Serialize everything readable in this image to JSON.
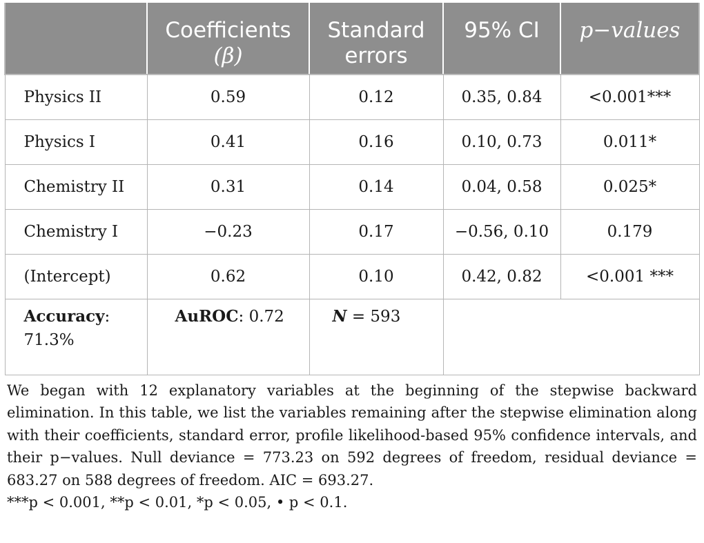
{
  "table": {
    "headers": [
      {
        "line1": "",
        "line2": ""
      },
      {
        "line1": "Coefficients",
        "line2": "(β)"
      },
      {
        "line1": "Standard",
        "line2": "errors"
      },
      {
        "line1": "95% CI",
        "line2": ""
      },
      {
        "line1": "p−values",
        "line2": ""
      }
    ],
    "rows": [
      {
        "label": "Physics II",
        "coef": "0.59",
        "se": "0.12",
        "ci": "0.35, 0.84",
        "p": "<0.001***"
      },
      {
        "label": "Physics I",
        "coef": "0.41",
        "se": "0.16",
        "ci": "0.10, 0.73",
        "p": "0.011*"
      },
      {
        "label": "Chemistry II",
        "coef": "0.31",
        "se": "0.14",
        "ci": "0.04, 0.58",
        "p": "0.025*"
      },
      {
        "label": "Chemistry I",
        "coef": "−0.23",
        "se": "0.17",
        "ci": "−0.56, 0.10",
        "p": "0.179"
      },
      {
        "label": "(Intercept)",
        "coef": "0.62",
        "se": "0.10",
        "ci": "0.42,  0.82",
        "p": "<0.001 ***"
      }
    ],
    "summary": {
      "accuracy_label": "Accuracy",
      "accuracy_value": ": 71.3%",
      "auroc_label": "AuROC",
      "auroc_value": ": 0.72",
      "n_label": "N",
      "n_value": " = 593"
    }
  },
  "notes": {
    "paragraph": "We began with 12 explanatory variables at the beginning of the stepwise backward elimination. In this table, we list the variables remaining after the stepwise elimination along with their coefficients, standard error, profile likelihood-based 95% confidence intervals, and their p−values. Null deviance = 773.23 on 592 degrees of freedom, residual deviance = 683.27 on 588 degrees of freedom. AIC = 693.27.",
    "significance": "***p < 0.001, **p < 0.01, *p < 0.05, • p < 0.1."
  }
}
